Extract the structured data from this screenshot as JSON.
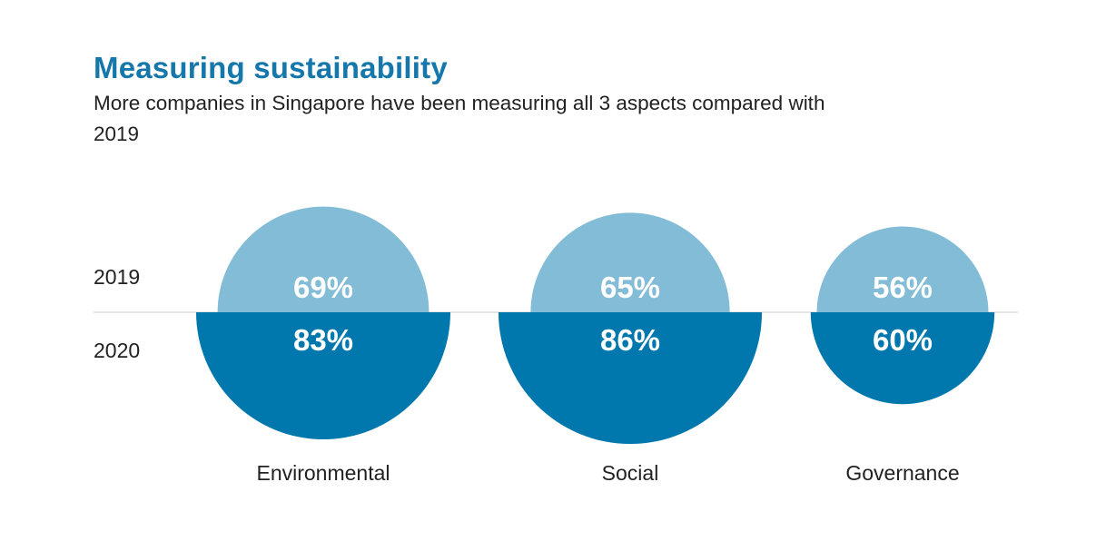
{
  "title": "Measuring sustainability",
  "subtitle": "More companies in Singapore have been measuring all 3 aspects compared with 2019",
  "chart_data": {
    "type": "semicircle-comparison",
    "title": "Measuring sustainability",
    "subtitle": "More companies in Singapore have been measuring all 3 aspects compared with 2019",
    "unit": "%",
    "categories": [
      "Environmental",
      "Social",
      "Governance"
    ],
    "series": [
      {
        "name": "2019",
        "values": [
          69,
          65,
          56
        ],
        "labels": [
          "69%",
          "65%",
          "56%"
        ],
        "color": "#82bcd6",
        "position": "top"
      },
      {
        "name": "2020",
        "values": [
          83,
          86,
          60
        ],
        "labels": [
          "83%",
          "86%",
          "60%"
        ],
        "color": "#0078ad",
        "position": "bottom"
      }
    ],
    "divider_color": "#cccccc"
  }
}
